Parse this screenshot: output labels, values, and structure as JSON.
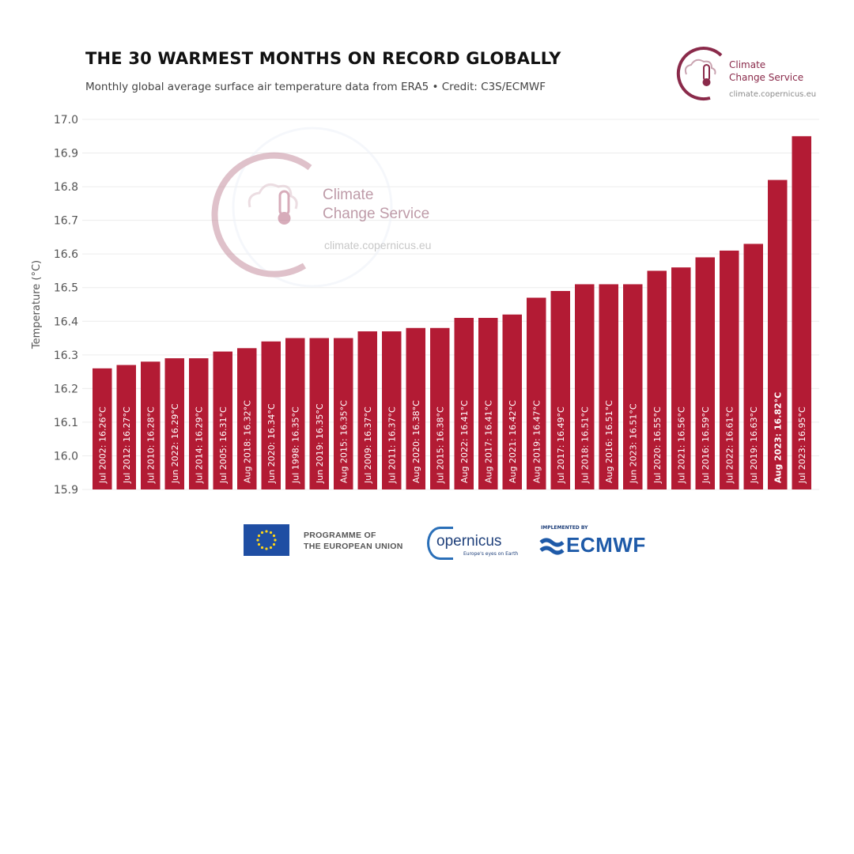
{
  "header": {
    "title": "THE 30 WARMEST MONTHS ON RECORD GLOBALLY",
    "subtitle": "Monthly global average surface air temperature data from ERA5 • Credit: C3S/ECMWF"
  },
  "brand": {
    "name_line1": "Climate",
    "name_line2": "Change Service",
    "url": "climate.copernicus.eu"
  },
  "watermark": {
    "name_line1": "Climate",
    "name_line2": "Change Service",
    "url": "climate.copernicus.eu"
  },
  "footer": {
    "eu_line1": "PROGRAMME OF",
    "eu_line2": "THE EUROPEAN UNION",
    "copernicus": "opernicus",
    "copernicus_tagline": "Europe's eyes on Earth",
    "ecmwf_implemented": "IMPLEMENTED BY",
    "ecmwf": "ECMWF"
  },
  "colors": {
    "bar": "#b31b34",
    "brand": "#8a2a4a",
    "grid": "#ececec"
  },
  "chart_data": {
    "type": "bar",
    "title": "THE 30 WARMEST MONTHS ON RECORD GLOBALLY",
    "ylabel": "Temperature (°C)",
    "xlabel": "",
    "ylim": [
      15.9,
      17.0
    ],
    "yticks": [
      "15.9",
      "16.0",
      "16.1",
      "16.2",
      "16.3",
      "16.4",
      "16.5",
      "16.6",
      "16.7",
      "16.8",
      "16.9",
      "17.0"
    ],
    "grid": true,
    "categories": [
      "Jul 2002",
      "Jul 2012",
      "Jul 2010",
      "Jun 2022",
      "Jul 2014",
      "Jul 2005",
      "Aug 2018",
      "Jun 2020",
      "Jul 1998",
      "Jun 2019",
      "Aug 2015",
      "Jul 2009",
      "Jul 2011",
      "Aug 2020",
      "Jul 2015",
      "Aug 2022",
      "Aug 2017",
      "Aug 2021",
      "Aug 2019",
      "Jul 2017",
      "Jul 2018",
      "Aug 2016",
      "Jun 2023",
      "Jul 2020",
      "Jul 2021",
      "Jul 2016",
      "Jul 2022",
      "Jul 2019",
      "Aug 2023",
      "Jul 2023"
    ],
    "values": [
      16.26,
      16.27,
      16.28,
      16.29,
      16.29,
      16.31,
      16.32,
      16.34,
      16.35,
      16.35,
      16.35,
      16.37,
      16.37,
      16.38,
      16.38,
      16.41,
      16.41,
      16.42,
      16.47,
      16.49,
      16.51,
      16.51,
      16.51,
      16.55,
      16.56,
      16.59,
      16.61,
      16.63,
      16.82,
      16.95
    ],
    "labels": [
      "Jul 2002: 16.26°C",
      "Jul 2012: 16.27°C",
      "Jul 2010: 16.28°C",
      "Jun 2022: 16.29°C",
      "Jul 2014: 16.29°C",
      "Jul 2005: 16.31°C",
      "Aug 2018: 16.32°C",
      "Jun 2020: 16.34°C",
      "Jul 1998: 16.35°C",
      "Jun 2019: 16.35°C",
      "Aug 2015: 16.35°C",
      "Jul 2009: 16.37°C",
      "Jul 2011: 16.37°C",
      "Aug 2020: 16.38°C",
      "Jul 2015: 16.38°C",
      "Aug 2022: 16.41°C",
      "Aug 2017: 16.41°C",
      "Aug 2021: 16.42°C",
      "Aug 2019: 16.47°C",
      "Jul 2017: 16.49°C",
      "Jul 2018: 16.51°C",
      "Aug 2016: 16.51°C",
      "Jun 2023: 16.51°C",
      "Jul 2020: 16.55°C",
      "Jul 2021: 16.56°C",
      "Jul 2016: 16.59°C",
      "Jul 2022: 16.61°C",
      "Jul 2019: 16.63°C",
      "Aug 2023: 16.82°C",
      "Jul 2023: 16.95°C"
    ],
    "highlight": [
      "Aug 2023"
    ]
  }
}
